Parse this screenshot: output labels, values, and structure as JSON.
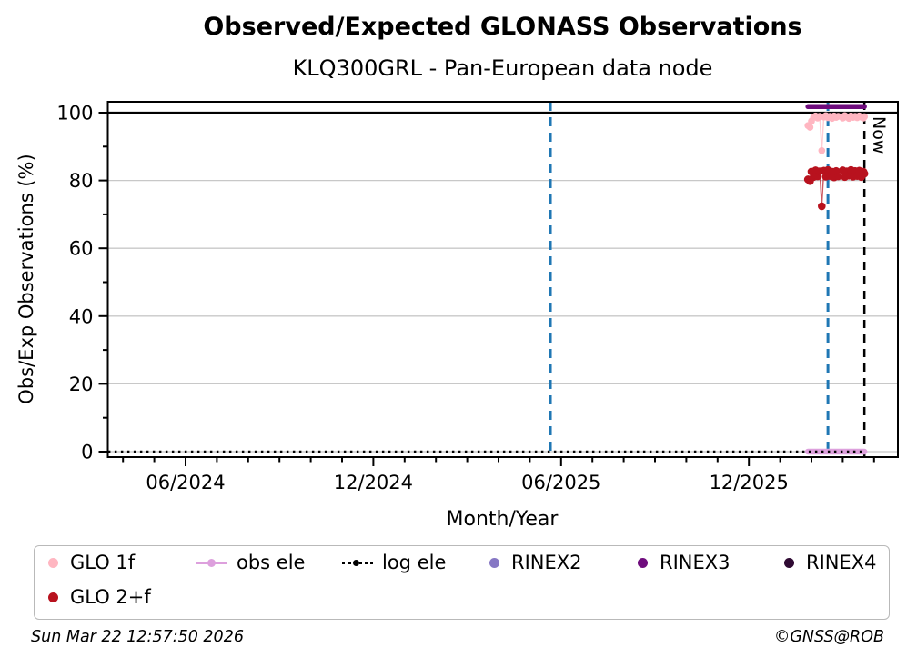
{
  "chart_data": {
    "type": "scatter",
    "title": "Observed/Expected GLONASS Observations",
    "subtitle": "KLQ300GRL - Pan-European data node",
    "xlabel": "Month/Year",
    "ylabel": "Obs/Exp Observations (%)",
    "xlim": [
      "2024-03-17",
      "2026-04-24"
    ],
    "ylim": [
      -1.6,
      103.2
    ],
    "grid": true,
    "grid_color": "#c8c8c8",
    "x_major_tick_labels": [
      "06/2024",
      "12/2024",
      "06/2025",
      "12/2025"
    ],
    "y_major_ticks": [
      0,
      20,
      40,
      60,
      80,
      100
    ],
    "y_minor_tick_step": 10,
    "hlines": [
      {
        "y": 100,
        "color": "#000000",
        "style": "solid"
      }
    ],
    "vlines": [
      {
        "x": "2025-05-21",
        "color": "#1f77b4",
        "style": "dashed",
        "label": ""
      },
      {
        "x": "2026-02-17",
        "color": "#1f77b4",
        "style": "dashed",
        "label": ""
      },
      {
        "x": "2026-03-22",
        "color": "#000000",
        "style": "dashed",
        "label": "Now"
      }
    ],
    "series": [
      {
        "name": "GLO 1f",
        "color": "#ffb6c1",
        "type": "line+markers",
        "marker_size": 3.8,
        "x": [
          "2026-01-28",
          "2026-01-30",
          "2026-02-01",
          "2026-02-03",
          "2026-02-05",
          "2026-02-07",
          "2026-02-09",
          "2026-02-11",
          "2026-02-13",
          "2026-02-15",
          "2026-02-17",
          "2026-02-19",
          "2026-02-21",
          "2026-02-23",
          "2026-02-25",
          "2026-02-27",
          "2026-03-01",
          "2026-03-03",
          "2026-03-05",
          "2026-03-07",
          "2026-03-09",
          "2026-03-11",
          "2026-03-13",
          "2026-03-15",
          "2026-03-17",
          "2026-03-19",
          "2026-03-21",
          "2026-03-22"
        ],
        "y": [
          96.2,
          95.7,
          97.5,
          98.6,
          99.0,
          98.4,
          98.9,
          88.8,
          98.7,
          99.1,
          98.5,
          98.9,
          98.3,
          99.0,
          98.6,
          98.9,
          98.4,
          99.1,
          98.7,
          98.3,
          99.0,
          98.6,
          98.9,
          98.5,
          99.0,
          98.7,
          98.4,
          98.8
        ]
      },
      {
        "name": "GLO 2+f",
        "color": "#b8121e",
        "type": "line+markers",
        "marker_size": 4.3,
        "x": [
          "2026-01-28",
          "2026-01-30",
          "2026-02-01",
          "2026-02-03",
          "2026-02-05",
          "2026-02-07",
          "2026-02-09",
          "2026-02-11",
          "2026-02-13",
          "2026-02-15",
          "2026-02-17",
          "2026-02-19",
          "2026-02-21",
          "2026-02-23",
          "2026-02-25",
          "2026-02-27",
          "2026-03-01",
          "2026-03-03",
          "2026-03-05",
          "2026-03-07",
          "2026-03-09",
          "2026-03-11",
          "2026-03-13",
          "2026-03-15",
          "2026-03-17",
          "2026-03-19",
          "2026-03-21",
          "2026-03-22"
        ],
        "y": [
          80.3,
          79.8,
          82.6,
          81.0,
          83.0,
          81.2,
          82.7,
          72.4,
          82.9,
          81.1,
          83.1,
          81.3,
          82.6,
          80.9,
          82.8,
          81.2,
          83.0,
          81.0,
          82.7,
          81.4,
          83.1,
          81.1,
          82.8,
          81.3,
          82.9,
          81.0,
          82.6,
          82.0
        ]
      },
      {
        "name": "obs ele",
        "color": "#dda0dd",
        "type": "line",
        "linewidth": 6.5,
        "x": [
          "2026-01-28",
          "2026-03-22"
        ],
        "y": [
          0,
          0
        ]
      },
      {
        "name": "log ele",
        "color": "#000000",
        "type": "dotted-line",
        "linewidth": 2.6,
        "x": [
          "2024-03-17",
          "2026-03-22"
        ],
        "y": [
          0,
          0
        ]
      },
      {
        "name": "RINEX2",
        "color": "#8677c4",
        "type": "line+markers",
        "marker_size": 4,
        "x": [],
        "y": []
      },
      {
        "name": "RINEX3",
        "color": "#6f0c7d",
        "type": "line",
        "linewidth": 5.5,
        "x": [
          "2026-01-28",
          "2026-03-22"
        ],
        "y": [
          101.8,
          101.8
        ]
      },
      {
        "name": "RINEX4",
        "color": "#2f0a33",
        "type": "line+markers",
        "marker_size": 4,
        "x": [],
        "y": []
      }
    ]
  },
  "legend": {
    "items": [
      {
        "label": "GLO 1f",
        "color": "#ffb6c1",
        "marker": "dot",
        "row": 1
      },
      {
        "label": "obs ele",
        "color": "#dda0dd",
        "marker": "line-dot",
        "row": 1
      },
      {
        "label": "log ele",
        "color": "#000000",
        "marker": "dotted-line-dot",
        "row": 1
      },
      {
        "label": "RINEX2",
        "color": "#8677c4",
        "marker": "dot",
        "row": 1
      },
      {
        "label": "RINEX3",
        "color": "#6f0c7d",
        "marker": "dot",
        "row": 1
      },
      {
        "label": "RINEX4",
        "color": "#2f0a33",
        "marker": "dot",
        "row": 1
      },
      {
        "label": "GLO 2+f",
        "color": "#b8121e",
        "marker": "dot",
        "row": 2
      }
    ]
  },
  "footer": {
    "left": "Sun Mar 22 12:57:50 2026",
    "right": "©GNSS@ROB"
  }
}
